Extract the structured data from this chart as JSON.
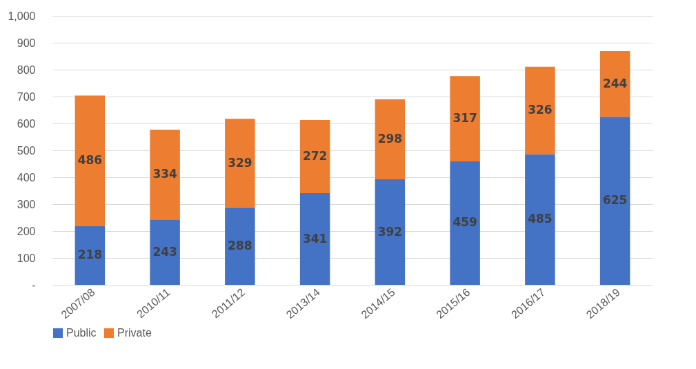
{
  "chart_data": {
    "type": "bar",
    "stacked": true,
    "categories": [
      "2007/08",
      "2010/11",
      "2011/12",
      "2013/14",
      "2014/15",
      "2015/16",
      "2016/17",
      "2018/19"
    ],
    "series": [
      {
        "name": "Public",
        "color": "#4472c4",
        "values": [
          218,
          243,
          288,
          341,
          392,
          459,
          485,
          625
        ]
      },
      {
        "name": "Private",
        "color": "#ed7d31",
        "values": [
          486,
          334,
          329,
          272,
          298,
          317,
          326,
          244
        ]
      }
    ],
    "ylim": [
      0,
      1000
    ],
    "yticks": [
      {
        "value": 0,
        "label": "-"
      },
      100,
      200,
      300,
      400,
      500,
      600,
      700,
      800,
      900,
      {
        "value": 1000,
        "label": "1,000"
      }
    ],
    "grid": "y",
    "legend": "bottom",
    "data_labels": true
  }
}
